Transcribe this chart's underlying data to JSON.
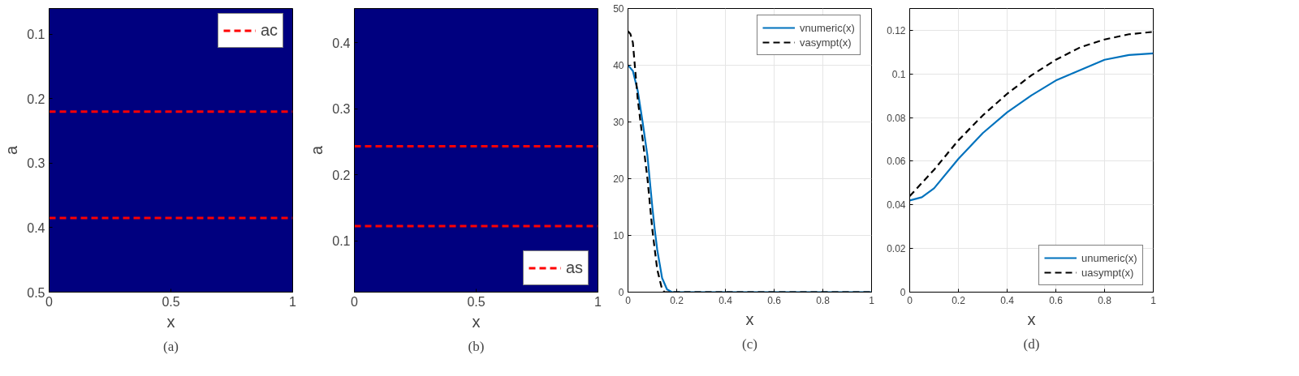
{
  "chart_data": [
    {
      "type": "line",
      "xlabel": "x",
      "ylabel": "a",
      "xlim": [
        0,
        1
      ],
      "ylim": [
        0.5,
        0.06
      ],
      "xticks": [
        0,
        0.5,
        1
      ],
      "yticks": [
        0.1,
        0.2,
        0.3,
        0.4,
        0.5
      ],
      "legend": "top right",
      "ref_lines": [
        {
          "axis": "y",
          "value": 0.22,
          "label": "ac",
          "color": "#ff0000",
          "line_style": "dashed"
        },
        {
          "axis": "y",
          "value": 0.385,
          "color": "#ff0000",
          "line_style": "dashed"
        }
      ],
      "annotations": [
        "(a)"
      ]
    },
    {
      "type": "line",
      "xlabel": "x",
      "ylabel": "a",
      "xlim": [
        0,
        1
      ],
      "ylim": [
        0.022,
        0.452
      ],
      "xticks": [
        0,
        0.5,
        1
      ],
      "yticks": [
        0.1,
        0.2,
        0.3,
        0.4
      ],
      "legend": "bottom right",
      "ref_lines": [
        {
          "axis": "y",
          "value": 0.243,
          "label": "as",
          "color": "#ff0000",
          "line_style": "dashed"
        },
        {
          "axis": "y",
          "value": 0.122,
          "color": "#ff0000",
          "line_style": "dashed"
        }
      ],
      "annotations": [
        "(b)"
      ]
    },
    {
      "type": "line",
      "xlabel": "x",
      "xlim": [
        0,
        1
      ],
      "ylim": [
        0,
        50
      ],
      "xticks": [
        0,
        0.2,
        0.4,
        0.6,
        0.8,
        1
      ],
      "yticks": [
        0,
        10,
        20,
        30,
        40,
        50
      ],
      "grid": true,
      "legend": "top right",
      "series": [
        {
          "name": "vnumeric(x)",
          "color": "#0072bd",
          "line_style": "solid",
          "x": [
            0,
            0.02,
            0.04,
            0.06,
            0.08,
            0.1,
            0.11,
            0.12,
            0.14,
            0.16,
            0.18,
            1
          ],
          "values": [
            40,
            39,
            35.5,
            30,
            24,
            15,
            11,
            7.5,
            2.5,
            0.5,
            0,
            0
          ]
        },
        {
          "name": "vasympt(x)",
          "color": "#000000",
          "line_style": "dashed",
          "x": [
            0,
            0.01,
            0.02,
            0.03,
            0.04,
            0.06,
            0.08,
            0.1,
            0.12,
            0.14,
            0.15,
            1
          ],
          "values": [
            46,
            45.5,
            44,
            39,
            34,
            27,
            20,
            11,
            4,
            0.5,
            0,
            0
          ]
        }
      ],
      "annotations": [
        "(c)"
      ]
    },
    {
      "type": "line",
      "xlabel": "x",
      "xlim": [
        0,
        1
      ],
      "ylim": [
        0,
        0.13
      ],
      "xticks": [
        0,
        0.2,
        0.4,
        0.6,
        0.8,
        1
      ],
      "yticks": [
        0,
        0.02,
        0.04,
        0.06,
        0.08,
        0.1,
        0.12
      ],
      "grid": true,
      "legend": "bottom right",
      "series": [
        {
          "name": "unumeric(x)",
          "color": "#0072bd",
          "line_style": "solid",
          "x": [
            0,
            0.05,
            0.1,
            0.2,
            0.3,
            0.4,
            0.5,
            0.6,
            0.7,
            0.8,
            0.9,
            1
          ],
          "values": [
            0.042,
            0.0435,
            0.0476,
            0.0611,
            0.0729,
            0.0824,
            0.0902,
            0.097,
            0.1018,
            0.1065,
            0.1087,
            0.1094
          ]
        },
        {
          "name": "uasympt(x)",
          "color": "#000000",
          "line_style": "dashed",
          "x": [
            0,
            0.1,
            0.2,
            0.3,
            0.4,
            0.5,
            0.6,
            0.7,
            0.8,
            0.9,
            1
          ],
          "values": [
            0.044,
            0.0561,
            0.0696,
            0.081,
            0.0909,
            0.0994,
            0.1065,
            0.1122,
            0.1158,
            0.1182,
            0.1193
          ]
        }
      ],
      "annotations": [
        "(d)"
      ]
    }
  ]
}
